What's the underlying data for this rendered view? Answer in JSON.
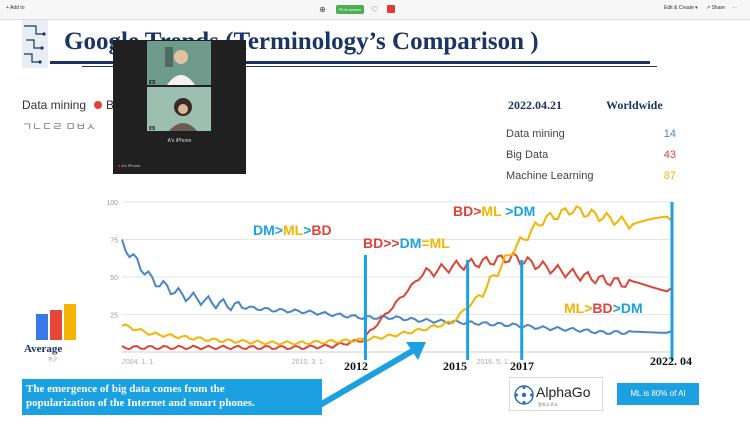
{
  "toolbar": {
    "add_label": "Add to",
    "edit_create_label": "Edit & Create",
    "share_label": "Share",
    "zoom_label": "Fit to screen"
  },
  "slide": {
    "title": "Google Trends (Terminology’s Comparison )",
    "legend_dm": "Data mining",
    "legend_bd_partial": "Big",
    "faded_text": "ㄱㄴㄷㄹ ㅁㅂㅅ",
    "video": {
      "label": "A's iPhone",
      "footer": "A's iPhone"
    },
    "info": {
      "date": "2022.04.21",
      "region": "Worldwide",
      "rows": [
        {
          "name": "Data mining",
          "value": "14",
          "color": "#4a86c5"
        },
        {
          "name": "Big Data",
          "value": "43",
          "color": "#db4437"
        },
        {
          "name": "Machine Learning",
          "value": "87",
          "color": "#f4b400"
        }
      ]
    },
    "annotations": {
      "a1": [
        "DM",
        ">",
        "ML",
        ">",
        "BD"
      ],
      "a2": [
        "BD",
        ">>",
        "DM",
        "=",
        "ML"
      ],
      "a3": [
        "BD",
        ">",
        "ML",
        " >",
        "DM"
      ],
      "a4": [
        "ML",
        ">",
        "BD",
        ">",
        "DM"
      ]
    },
    "years": {
      "y2012": "2012",
      "y2015": "2015",
      "y2017": "2017",
      "y2022": "2022. 04"
    },
    "average_label": "Average",
    "average_sub": "평균",
    "bluebox_line1": "The emergence of big data comes from the",
    "bluebox_line2": "popularization of the Internet and smart phones.",
    "alphago_title": "AlphaGo",
    "alphago_sub": "알파고 로고",
    "ml_box": "ML is 80% of AI"
  },
  "chart_data": {
    "type": "line",
    "title": "",
    "xlabel": "",
    "ylabel": "",
    "ylim": [
      0,
      100
    ],
    "yticks": [
      "100",
      "75",
      "50",
      "25"
    ],
    "xticks": [
      "2004. 1. 1.",
      "2010. 3. 1.",
      "2016. 5. 1."
    ],
    "x": [
      2004,
      2005,
      2006,
      2007,
      2008,
      2009,
      2010,
      2011,
      2012,
      2013,
      2014,
      2015,
      2016,
      2017,
      2018,
      2019,
      2020,
      2021,
      2022.3
    ],
    "series": [
      {
        "name": "Data mining",
        "color": "#4a86c5",
        "values": [
          72,
          48,
          38,
          33,
          30,
          28,
          27,
          25,
          23,
          23,
          21,
          20,
          19,
          18,
          16,
          15,
          13,
          13,
          14
        ]
      },
      {
        "name": "Big Data",
        "color": "#db4437",
        "values": [
          3,
          3,
          3,
          3,
          3,
          3,
          3,
          4,
          8,
          30,
          52,
          57,
          60,
          63,
          57,
          52,
          48,
          45,
          43
        ]
      },
      {
        "name": "Machine Learning",
        "color": "#f4b400",
        "values": [
          18,
          12,
          10,
          8,
          7,
          6,
          6,
          7,
          8,
          11,
          15,
          20,
          40,
          68,
          88,
          95,
          90,
          85,
          87
        ]
      }
    ]
  }
}
